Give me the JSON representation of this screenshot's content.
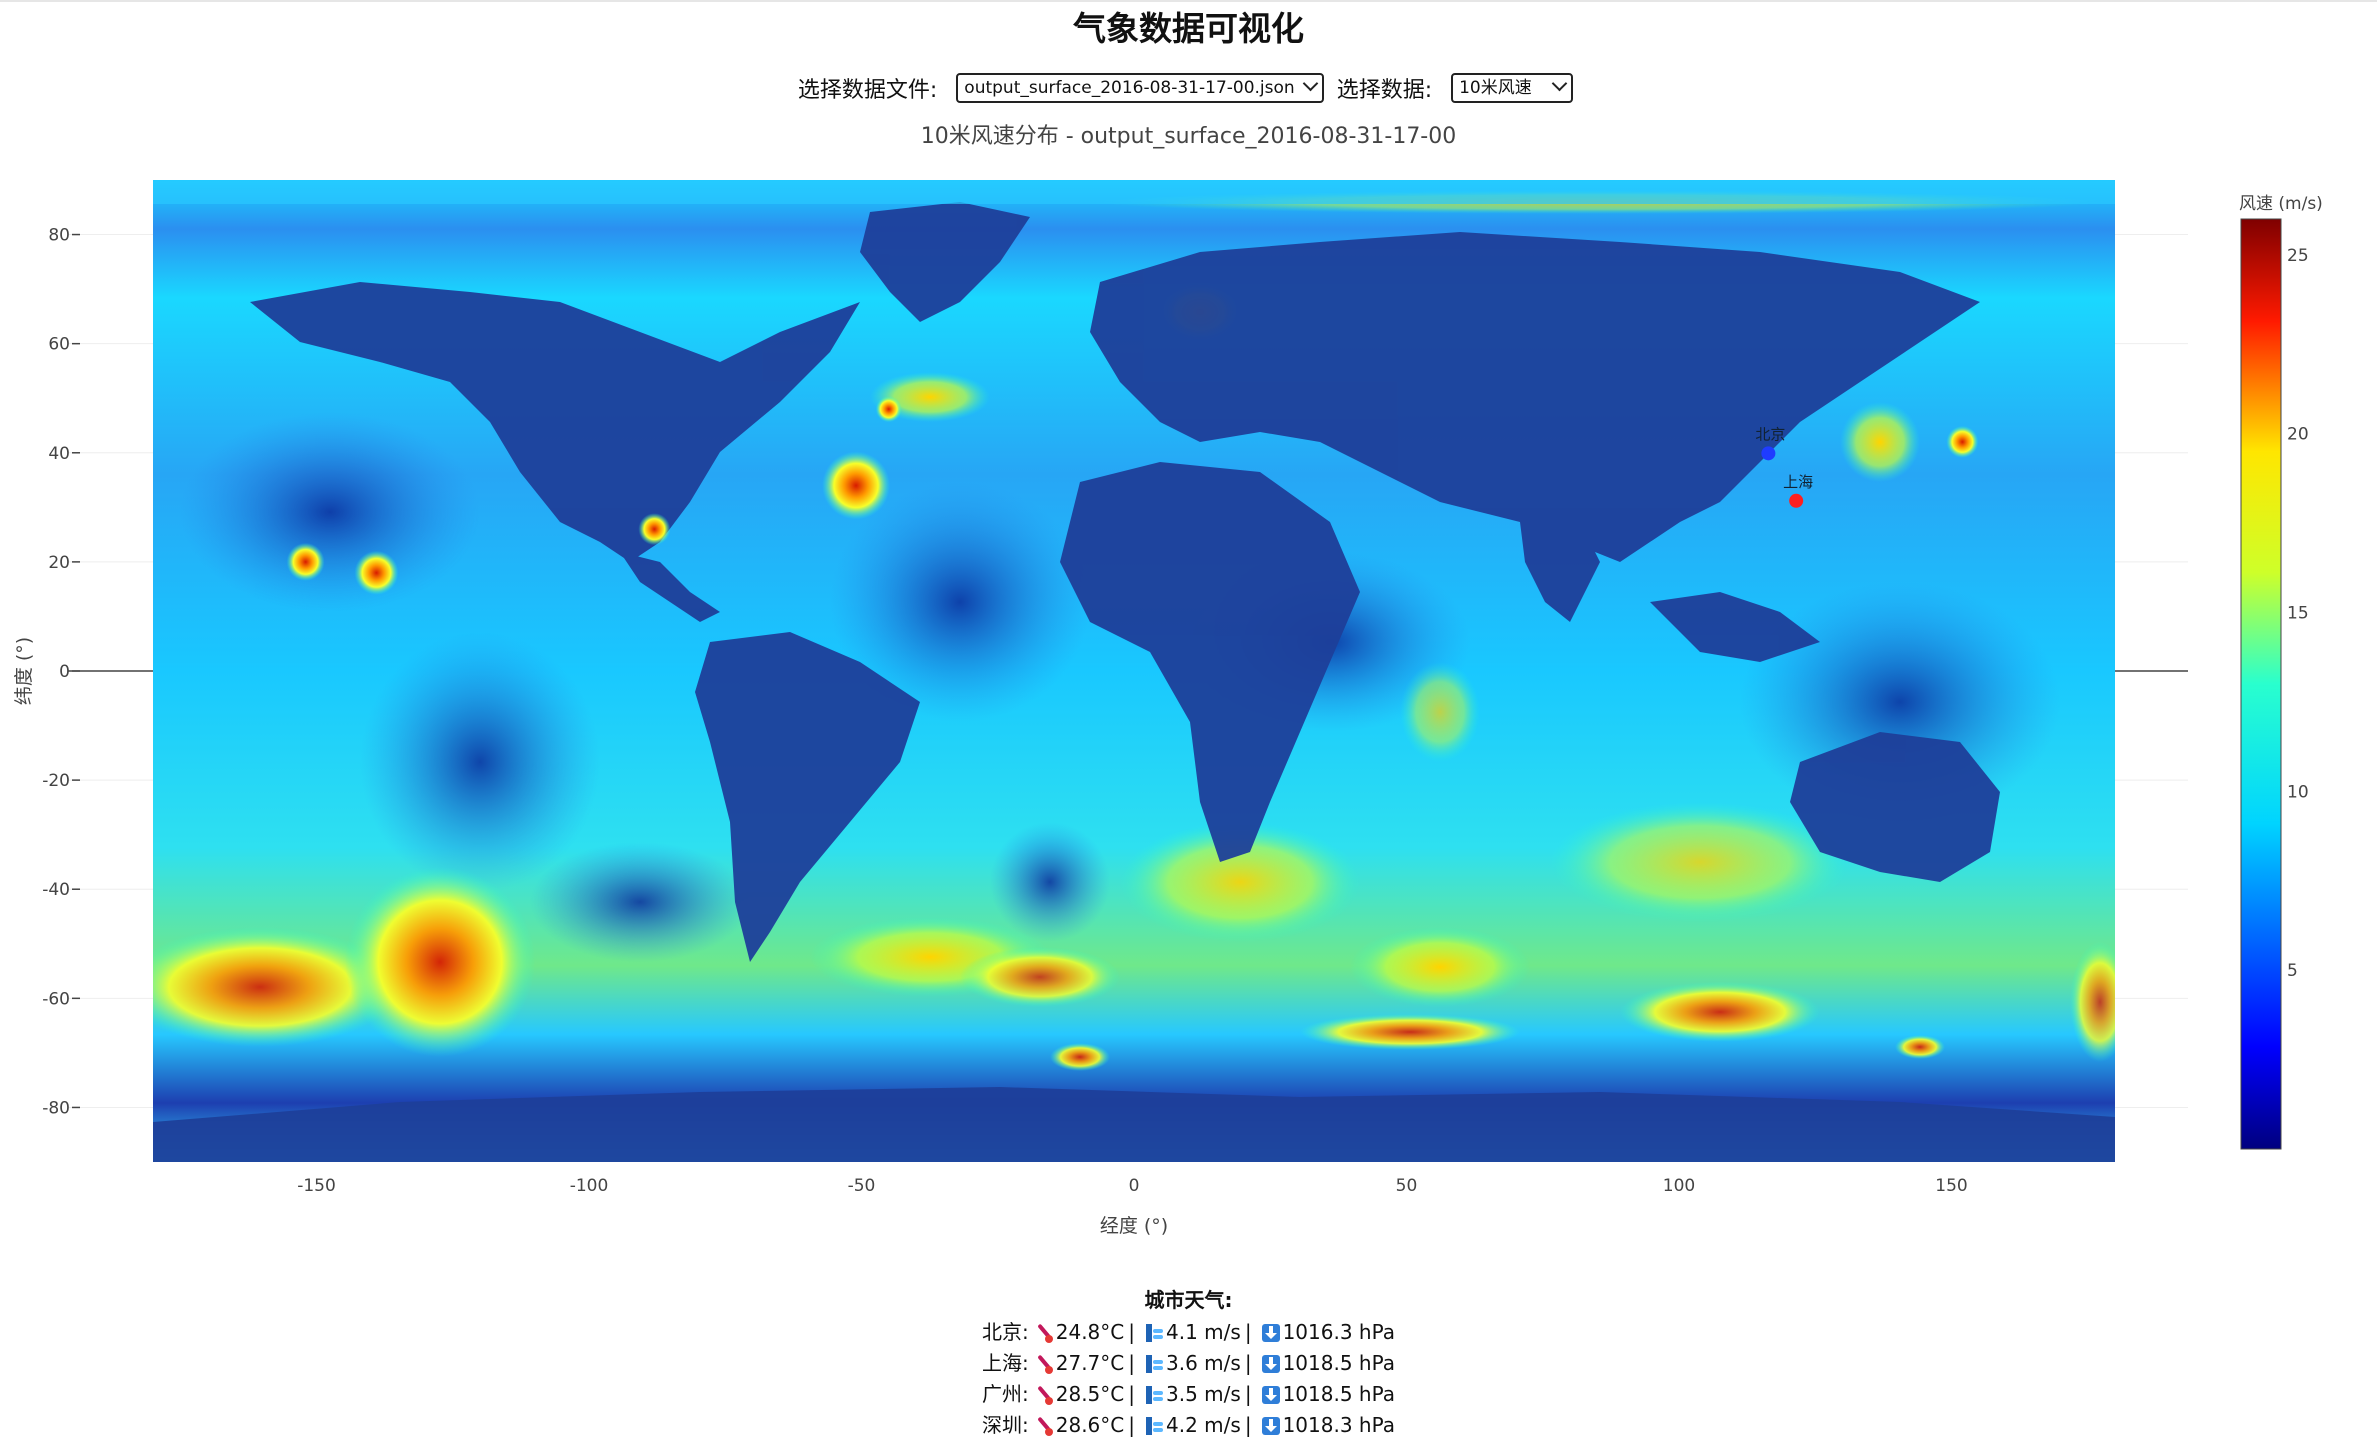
{
  "page": {
    "title": "气象数据可视化",
    "file_label": "选择数据文件:",
    "file_value": "output_surface_2016-08-31-17-00.json",
    "data_label": "选择数据:",
    "data_value": "10米风速"
  },
  "chart_data": {
    "type": "heatmap",
    "title": "10米风速分布 - output_surface_2016-08-31-17-00",
    "xlabel": "经度 (°)",
    "ylabel": "纬度 (°)",
    "xlim": [
      -180,
      180
    ],
    "ylim": [
      -90,
      90
    ],
    "x_ticks": [
      -150,
      -100,
      -50,
      0,
      50,
      100,
      150
    ],
    "y_ticks": [
      80,
      60,
      40,
      20,
      0,
      -20,
      -40,
      -60,
      -80
    ],
    "grid": true,
    "colorscale": "Jet",
    "colorbar": {
      "title": "风速 (m/s)",
      "range": [
        0,
        26
      ],
      "ticks": [
        25,
        20,
        15,
        10,
        5
      ]
    },
    "markers": [
      {
        "name": "北京",
        "lon": 116.4,
        "lat": 39.9,
        "color": "#1f3cff"
      },
      {
        "name": "上海",
        "lon": 121.5,
        "lat": 31.2,
        "color": "#ff1f1f"
      }
    ],
    "hotspots": [
      {
        "lon": -51,
        "lat": 34,
        "value": 22
      },
      {
        "lon": -152,
        "lat": 20,
        "value": 17
      },
      {
        "lon": -139,
        "lat": 18,
        "value": 18
      },
      {
        "lon": -88,
        "lat": 26,
        "value": 16
      },
      {
        "lon": -45,
        "lat": 48,
        "value": 15
      },
      {
        "lon": 152,
        "lat": 42,
        "value": 16
      }
    ]
  },
  "cities": {
    "heading": "城市天气:",
    "rows": [
      {
        "name": "北京:",
        "temp": "24.8°C",
        "wind": "4.1 m/s",
        "pressure": "1016.3 hPa"
      },
      {
        "name": "上海:",
        "temp": "27.7°C",
        "wind": "3.6 m/s",
        "pressure": "1018.5 hPa"
      },
      {
        "name": "广州:",
        "temp": "28.5°C",
        "wind": "3.5 m/s",
        "pressure": "1018.5 hPa"
      },
      {
        "name": "深圳:",
        "temp": "28.6°C",
        "wind": "4.2 m/s",
        "pressure": "1018.3 hPa"
      }
    ]
  },
  "colors": {
    "ocean_mid": "#1fd7ff",
    "land": "#1e3f9a",
    "jet_low": "#00007f",
    "jet_high": "#7f0000"
  }
}
